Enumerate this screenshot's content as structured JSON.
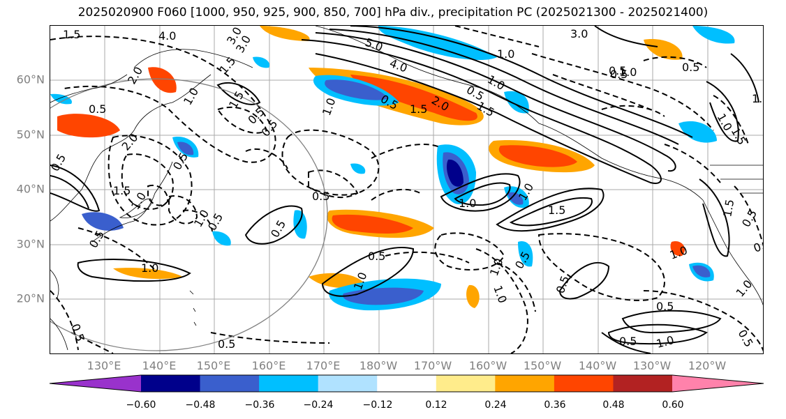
{
  "title": "2025020900 F060 [1000, 950, 925, 900, 850, 700] hPa div., precipitation PC (2025021300 - 2025021400)",
  "lat_labels": [
    "60°N",
    "50°N",
    "40°N",
    "30°N",
    "20°N"
  ],
  "lon_labels": [
    "130°E",
    "140°E",
    "150°E",
    "160°E",
    "170°E",
    "180°W",
    "170°W",
    "160°W",
    "150°W",
    "140°W",
    "130°W",
    "120°W"
  ],
  "colorbar": {
    "colors": [
      "#9932cc",
      "#00008b",
      "#3a5fcd",
      "#00bfff",
      "#b0e2ff",
      "#ffffff",
      "#ffec8b",
      "#ffa500",
      "#ff4500",
      "#b22222",
      "#ff82ab"
    ],
    "tick_labels": [
      "−0.60",
      "−0.48",
      "−0.36",
      "−0.24",
      "−0.12",
      "0.12",
      "0.24",
      "0.36",
      "0.48",
      "0.60"
    ]
  },
  "contour_labels": [
    "1.5",
    "4.0",
    "3.0",
    "5.0",
    "4.0",
    "1.0",
    "2.0",
    "3.0",
    "1.5",
    "0.5",
    "1.0",
    "1.5",
    "2.0",
    "0.5",
    "1.0",
    "0.5",
    "0.5",
    "1.5",
    "1.0",
    "0.5",
    "1.5",
    "3.0",
    "1.0",
    "0.5",
    "0.5",
    "2.0",
    "1.5",
    "0.5",
    "1.0",
    "0.5",
    "1.0",
    "0.5",
    "0.5",
    "0.5",
    "0.5",
    "1.5",
    "1.0",
    "1.0",
    "1.0",
    "1.0",
    "0.5",
    "1.0",
    "1.0",
    "0.5",
    "1.0",
    "0.5",
    "0.5",
    "0.5",
    "1.0",
    "0.5",
    "1.0",
    "1.5",
    "1.0",
    "0.5",
    "0.5",
    "0.5",
    "0.5",
    "1.5",
    "1.0",
    "0.5"
  ]
}
